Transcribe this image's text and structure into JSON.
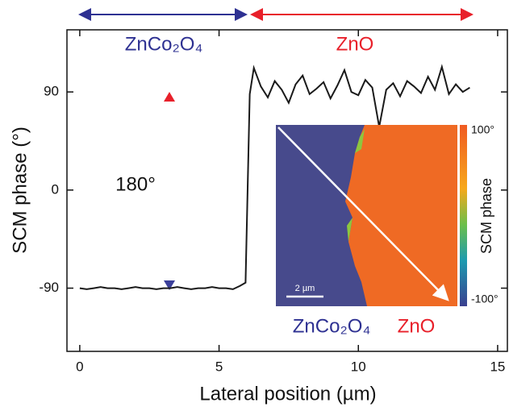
{
  "chart_data": {
    "type": "line",
    "x_label": "Lateral position (µm)",
    "y_label": "SCM phase (°)",
    "x": [
      0,
      0.25,
      0.5,
      0.75,
      1,
      1.25,
      1.5,
      1.75,
      2,
      2.25,
      2.5,
      2.75,
      3,
      3.25,
      3.5,
      3.75,
      4,
      4.25,
      4.5,
      4.75,
      5,
      5.25,
      5.5,
      5.75,
      5.95,
      6.1,
      6.25,
      6.5,
      6.75,
      7,
      7.25,
      7.5,
      7.75,
      8,
      8.25,
      8.5,
      8.75,
      9,
      9.25,
      9.5,
      9.75,
      10,
      10.25,
      10.5,
      10.75,
      11,
      11.25,
      11.5,
      11.75,
      12,
      12.25,
      12.5,
      12.75,
      13,
      13.25,
      13.5,
      13.75,
      14
    ],
    "values": [
      -90,
      -91,
      -90,
      -89,
      -90,
      -90,
      -91,
      -90,
      -89,
      -90,
      -90,
      -91,
      -90,
      -90,
      -89,
      -90,
      -91,
      -90,
      -90,
      -89,
      -90,
      -90,
      -91,
      -88,
      -85,
      88,
      112,
      95,
      85,
      100,
      92,
      80,
      97,
      105,
      88,
      93,
      99,
      84,
      96,
      110,
      90,
      87,
      101,
      94,
      58,
      92,
      98,
      86,
      100,
      95,
      89,
      104,
      92,
      113,
      88,
      97,
      90,
      94
    ],
    "color": "#1a1a1a",
    "xlim": [
      -0.46,
      15.35
    ],
    "ylim": [
      -148,
      147
    ],
    "xticks": [
      0,
      5,
      10,
      15
    ],
    "yticks": [
      -90,
      0,
      90
    ],
    "annotations": {
      "left_region": "ZnCo₂O₄",
      "right_region": "ZnO",
      "phase_span": "180°",
      "inset_left": "ZnCo₂O₄",
      "inset_right": "ZnO",
      "scale_bar": "2 µm",
      "colorbar_label": "SCM phase",
      "colorbar_max": "100°",
      "colorbar_min": "-100°"
    }
  }
}
